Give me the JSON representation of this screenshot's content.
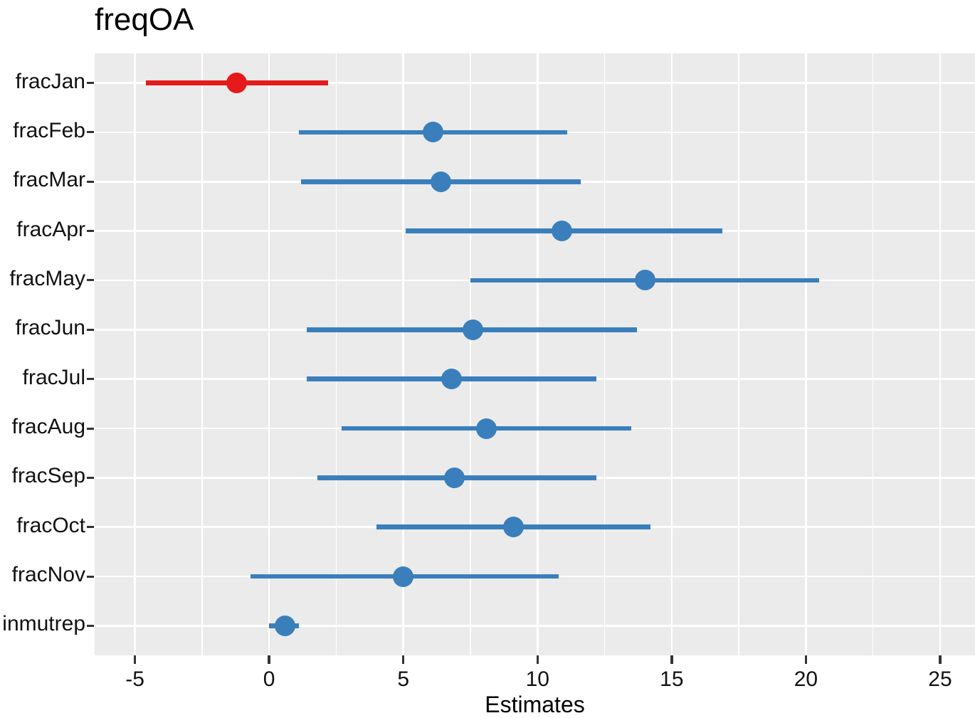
{
  "chart_data": {
    "type": "scatter",
    "subtype": "forest-plot-pointrange",
    "title": "freqOA",
    "xlabel": "Estimates",
    "ylabel": "",
    "legend_position": "none",
    "grid": true,
    "x_ticks": [
      -5,
      0,
      5,
      10,
      15,
      20,
      25
    ],
    "x_minor_ticks": [
      -2.5,
      2.5,
      7.5,
      12.5,
      17.5,
      22.5
    ],
    "xlim": [
      -6.5,
      26.3
    ],
    "categories": [
      "fracJan",
      "fracFeb",
      "fracMar",
      "fracApr",
      "fracMay",
      "fracJun",
      "fracJul",
      "fracAug",
      "fracSep",
      "fracOct",
      "fracNov",
      "inmutrep"
    ],
    "series": [
      {
        "name": "fracJan",
        "estimate": -1.2,
        "ci_low": -4.6,
        "ci_high": 2.2,
        "color": "#e41a1c"
      },
      {
        "name": "fracFeb",
        "estimate": 6.1,
        "ci_low": 1.1,
        "ci_high": 11.1,
        "color": "#3a7fbc"
      },
      {
        "name": "fracMar",
        "estimate": 6.4,
        "ci_low": 1.2,
        "ci_high": 11.6,
        "color": "#3a7fbc"
      },
      {
        "name": "fracApr",
        "estimate": 10.9,
        "ci_low": 5.1,
        "ci_high": 16.9,
        "color": "#3a7fbc"
      },
      {
        "name": "fracMay",
        "estimate": 14.0,
        "ci_low": 7.5,
        "ci_high": 20.5,
        "color": "#3a7fbc"
      },
      {
        "name": "fracJun",
        "estimate": 7.6,
        "ci_low": 1.4,
        "ci_high": 13.7,
        "color": "#3a7fbc"
      },
      {
        "name": "fracJul",
        "estimate": 6.8,
        "ci_low": 1.4,
        "ci_high": 12.2,
        "color": "#3a7fbc"
      },
      {
        "name": "fracAug",
        "estimate": 8.1,
        "ci_low": 2.7,
        "ci_high": 13.5,
        "color": "#3a7fbc"
      },
      {
        "name": "fracSep",
        "estimate": 6.9,
        "ci_low": 1.8,
        "ci_high": 12.2,
        "color": "#3a7fbc"
      },
      {
        "name": "fracOct",
        "estimate": 9.1,
        "ci_low": 4.0,
        "ci_high": 14.2,
        "color": "#3a7fbc"
      },
      {
        "name": "fracNov",
        "estimate": 5.0,
        "ci_low": -0.7,
        "ci_high": 10.8,
        "color": "#3a7fbc"
      },
      {
        "name": "inmutrep",
        "estimate": 0.6,
        "ci_low": 0.0,
        "ci_high": 1.1,
        "color": "#3a7fbc"
      }
    ],
    "colors": {
      "panel_background": "#ebebeb",
      "gridline": "#ffffff",
      "negative_estimate": "#e41a1c",
      "positive_estimate": "#3a7fbc",
      "tick_mark": "#333333",
      "axis_text": "#111111",
      "title_text": "#000000"
    }
  }
}
